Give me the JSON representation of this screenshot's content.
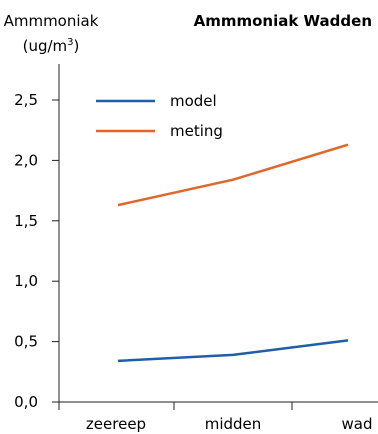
{
  "chart_data": {
    "type": "line",
    "title": "Ammmoniak Wadden",
    "ylabel_line1": "Ammmoniak",
    "ylabel_line2_base": "(ug/m",
    "ylabel_line2_sup": "3",
    "ylabel_line2_end": ")",
    "xlabel": "",
    "categories": [
      "zeereep",
      "midden",
      "wad"
    ],
    "ylim": [
      0,
      2.75
    ],
    "yticks": [
      "0,0",
      "0,5",
      "1,0",
      "1,5",
      "2,0",
      "2,5"
    ],
    "ytick_values": [
      0,
      0.5,
      1.0,
      1.5,
      2.0,
      2.5
    ],
    "grid": false,
    "legend_position": "top-left",
    "series": [
      {
        "name": "model",
        "color": "#1f5fa8",
        "values": [
          0.34,
          0.39,
          0.51
        ]
      },
      {
        "name": "meting",
        "color": "#e0662a",
        "values": [
          1.63,
          1.84,
          2.13
        ]
      }
    ]
  }
}
